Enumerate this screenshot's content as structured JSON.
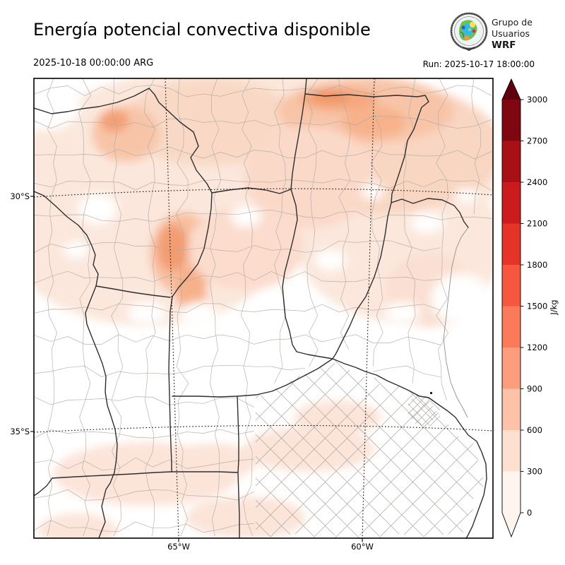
{
  "header": {
    "title": "Energía potencial convectiva disponible",
    "valid_time": "2025-10-18 00:00:00 ARG",
    "run_label": "Run: 2025-10-17 18:00:00",
    "logo": {
      "line1": "Grupo de",
      "line2": "Usuarios",
      "line3": "WRF"
    }
  },
  "axes": {
    "lat": [
      "30°S",
      "35°S"
    ],
    "lon": [
      "65°W",
      "60°W"
    ]
  },
  "colorbar": {
    "units": "J/kg",
    "ticks": [
      "3000",
      "2700",
      "2400",
      "2100",
      "1800",
      "1500",
      "1200",
      "900",
      "600",
      "300",
      "0"
    ],
    "segment_colors": [
      "#7f0711",
      "#a81016",
      "#cb1b1d",
      "#e63328",
      "#f6573e",
      "#fb7a5a",
      "#fc9e7e",
      "#fdc2a8",
      "#fee0d1",
      "#fff4ee"
    ],
    "arrow_top_color": "#5f000c",
    "arrow_bottom_color": "#fff4ee",
    "palette_name": "Reds"
  },
  "field": {
    "variable": "CAPE",
    "min_shade_color": "#fff5f0",
    "max_shade_color_on_map": "#f19465"
  }
}
